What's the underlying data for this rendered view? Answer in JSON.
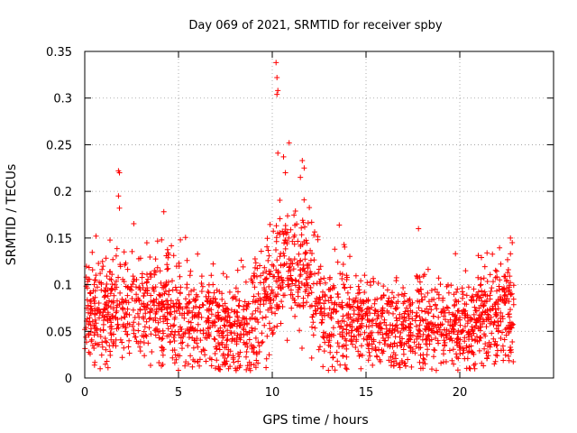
{
  "chart_data": {
    "type": "scatter",
    "title": "Day 069 of 2021, SRMTID for receiver spby",
    "xlabel": "GPS time / hours",
    "ylabel": "SRMTID / TECUs",
    "xlim": [
      0,
      25
    ],
    "ylim": [
      0,
      0.35
    ],
    "x_ticks": [
      0,
      5,
      10,
      15,
      20
    ],
    "x_tick_labels": [
      "0",
      "5",
      "10",
      "15",
      "20"
    ],
    "y_ticks": [
      0,
      0.05,
      0.1,
      0.15,
      0.2,
      0.25,
      0.3,
      0.35
    ],
    "y_tick_labels": [
      "0",
      "0.05",
      "0.1",
      "0.15",
      "0.2",
      "0.25",
      "0.3",
      "0.35"
    ],
    "grid": true,
    "marker": "+",
    "color": "#ff0000",
    "series": [
      {
        "name": "SRMTID",
        "generated_density": 2200,
        "x_range": [
          0,
          22.9
        ],
        "baseline_profile": [
          {
            "x": 0,
            "y": 0.065
          },
          {
            "x": 1,
            "y": 0.072
          },
          {
            "x": 2,
            "y": 0.08
          },
          {
            "x": 3,
            "y": 0.078
          },
          {
            "x": 4,
            "y": 0.075
          },
          {
            "x": 5,
            "y": 0.07
          },
          {
            "x": 6,
            "y": 0.062
          },
          {
            "x": 7,
            "y": 0.055
          },
          {
            "x": 8,
            "y": 0.05
          },
          {
            "x": 9,
            "y": 0.06
          },
          {
            "x": 10,
            "y": 0.1
          },
          {
            "x": 11,
            "y": 0.13
          },
          {
            "x": 11.8,
            "y": 0.115
          },
          {
            "x": 12.5,
            "y": 0.075
          },
          {
            "x": 13,
            "y": 0.065
          },
          {
            "x": 14,
            "y": 0.065
          },
          {
            "x": 15,
            "y": 0.058
          },
          {
            "x": 16,
            "y": 0.055
          },
          {
            "x": 17,
            "y": 0.06
          },
          {
            "x": 18,
            "y": 0.058
          },
          {
            "x": 19,
            "y": 0.055
          },
          {
            "x": 20,
            "y": 0.055
          },
          {
            "x": 21,
            "y": 0.06
          },
          {
            "x": 22,
            "y": 0.065
          },
          {
            "x": 22.9,
            "y": 0.075
          }
        ],
        "outliers": [
          {
            "x": 10.2,
            "y": 0.338
          },
          {
            "x": 10.25,
            "y": 0.322
          },
          {
            "x": 10.3,
            "y": 0.308
          },
          {
            "x": 10.25,
            "y": 0.304
          },
          {
            "x": 10.9,
            "y": 0.252
          },
          {
            "x": 10.3,
            "y": 0.241
          },
          {
            "x": 10.6,
            "y": 0.237
          },
          {
            "x": 11.6,
            "y": 0.233
          },
          {
            "x": 1.8,
            "y": 0.222
          },
          {
            "x": 1.85,
            "y": 0.22
          },
          {
            "x": 1.8,
            "y": 0.195
          },
          {
            "x": 1.85,
            "y": 0.182
          },
          {
            "x": 11.7,
            "y": 0.225
          },
          {
            "x": 11.5,
            "y": 0.215
          },
          {
            "x": 10.7,
            "y": 0.22
          },
          {
            "x": 17.8,
            "y": 0.16
          },
          {
            "x": 22.7,
            "y": 0.15
          },
          {
            "x": 22.8,
            "y": 0.145
          },
          {
            "x": 22.7,
            "y": 0.133
          },
          {
            "x": 0.6,
            "y": 0.152
          },
          {
            "x": 4.1,
            "y": 0.148
          },
          {
            "x": 5.1,
            "y": 0.148
          },
          {
            "x": 20.8,
            "y": 0.01
          },
          {
            "x": 7.5,
            "y": 0.015
          },
          {
            "x": 2.0,
            "y": 0.022
          }
        ]
      }
    ]
  }
}
